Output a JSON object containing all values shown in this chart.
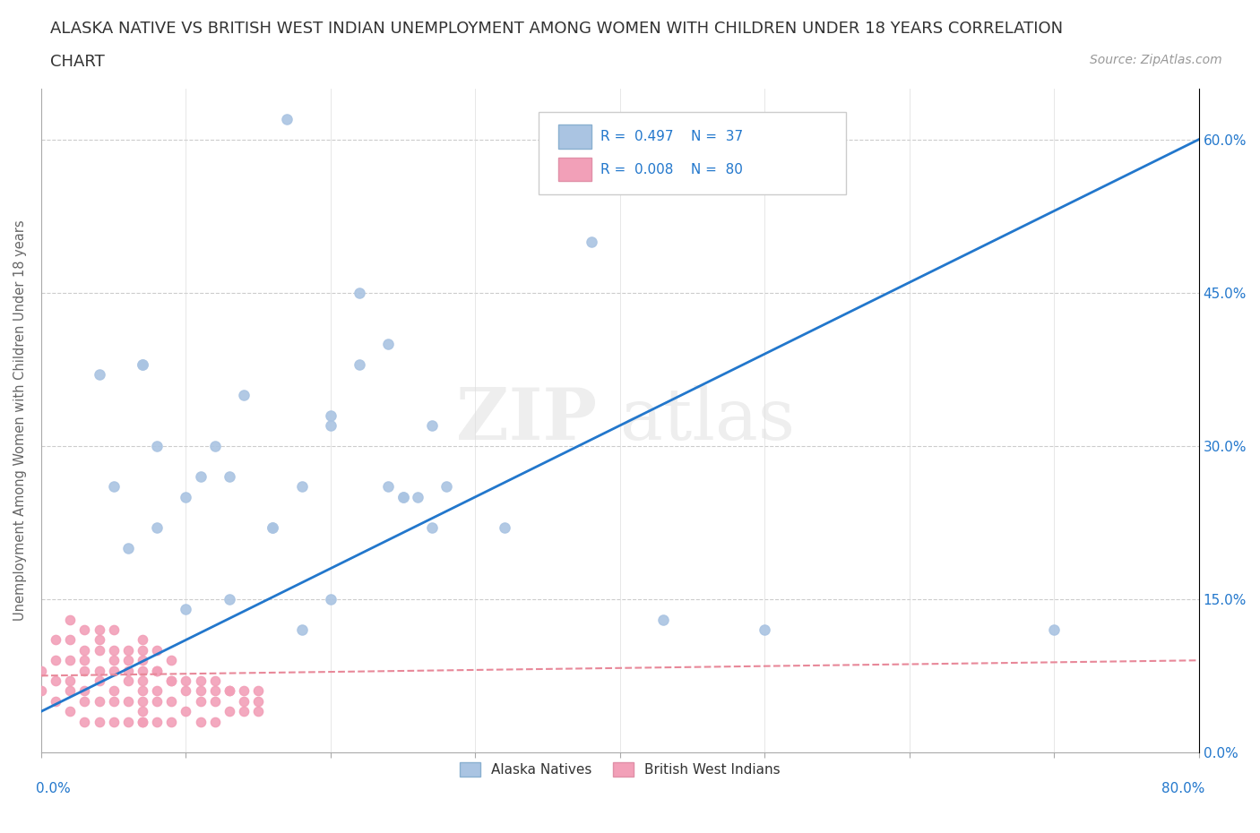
{
  "title_line1": "ALASKA NATIVE VS BRITISH WEST INDIAN UNEMPLOYMENT AMONG WOMEN WITH CHILDREN UNDER 18 YEARS CORRELATION",
  "title_line2": "CHART",
  "source_text": "Source: ZipAtlas.com",
  "ylabel": "Unemployment Among Women with Children Under 18 years",
  "watermark": "ZIPatlas",
  "alaska_color": "#aac4e2",
  "bwi_color": "#f2a0b8",
  "alaska_line_color": "#2277cc",
  "bwi_line_color": "#e88899",
  "alaska_scatter_x": [
    0.17,
    0.22,
    0.24,
    0.22,
    0.2,
    0.07,
    0.07,
    0.14,
    0.12,
    0.08,
    0.11,
    0.13,
    0.18,
    0.24,
    0.28,
    0.25,
    0.26,
    0.32,
    0.2,
    0.38,
    0.5,
    0.43,
    0.27,
    0.1,
    0.06,
    0.05,
    0.04,
    0.13,
    0.1,
    0.08,
    0.16,
    0.16,
    0.2,
    0.25,
    0.18,
    0.7,
    0.27
  ],
  "alaska_scatter_y": [
    0.62,
    0.45,
    0.4,
    0.38,
    0.33,
    0.38,
    0.38,
    0.35,
    0.3,
    0.3,
    0.27,
    0.27,
    0.26,
    0.26,
    0.26,
    0.25,
    0.25,
    0.22,
    0.32,
    0.5,
    0.12,
    0.13,
    0.22,
    0.25,
    0.2,
    0.26,
    0.37,
    0.15,
    0.14,
    0.22,
    0.22,
    0.22,
    0.15,
    0.25,
    0.12,
    0.12,
    0.32
  ],
  "bwi_scatter_x": [
    0.0,
    0.0,
    0.01,
    0.01,
    0.01,
    0.01,
    0.02,
    0.02,
    0.02,
    0.02,
    0.02,
    0.03,
    0.03,
    0.03,
    0.03,
    0.03,
    0.03,
    0.04,
    0.04,
    0.04,
    0.04,
    0.04,
    0.04,
    0.05,
    0.05,
    0.05,
    0.05,
    0.05,
    0.05,
    0.06,
    0.06,
    0.06,
    0.06,
    0.06,
    0.07,
    0.07,
    0.07,
    0.07,
    0.07,
    0.07,
    0.07,
    0.07,
    0.07,
    0.08,
    0.08,
    0.08,
    0.08,
    0.08,
    0.09,
    0.09,
    0.09,
    0.09,
    0.1,
    0.1,
    0.11,
    0.11,
    0.11,
    0.12,
    0.12,
    0.12,
    0.13,
    0.13,
    0.14,
    0.14,
    0.15,
    0.15,
    0.02,
    0.03,
    0.04,
    0.05,
    0.06,
    0.07,
    0.08,
    0.09,
    0.1,
    0.11,
    0.12,
    0.13,
    0.14,
    0.15
  ],
  "bwi_scatter_y": [
    0.06,
    0.08,
    0.05,
    0.07,
    0.09,
    0.11,
    0.04,
    0.06,
    0.07,
    0.09,
    0.11,
    0.03,
    0.05,
    0.06,
    0.08,
    0.1,
    0.12,
    0.03,
    0.05,
    0.07,
    0.08,
    0.1,
    0.12,
    0.03,
    0.05,
    0.06,
    0.08,
    0.1,
    0.12,
    0.03,
    0.05,
    0.07,
    0.08,
    0.1,
    0.03,
    0.04,
    0.06,
    0.07,
    0.09,
    0.1,
    0.11,
    0.03,
    0.05,
    0.03,
    0.05,
    0.06,
    0.08,
    0.1,
    0.03,
    0.05,
    0.07,
    0.09,
    0.04,
    0.06,
    0.03,
    0.05,
    0.07,
    0.03,
    0.05,
    0.07,
    0.04,
    0.06,
    0.04,
    0.06,
    0.04,
    0.06,
    0.13,
    0.09,
    0.11,
    0.09,
    0.09,
    0.08,
    0.08,
    0.07,
    0.07,
    0.06,
    0.06,
    0.06,
    0.05,
    0.05
  ],
  "alaska_line_x": [
    0.0,
    0.8
  ],
  "alaska_line_y": [
    0.04,
    0.6
  ],
  "bwi_line_x": [
    0.0,
    0.8
  ],
  "bwi_line_y": [
    0.075,
    0.09
  ],
  "xlim": [
    0.0,
    0.8
  ],
  "ylim": [
    0.0,
    0.65
  ],
  "x_ticks": [
    0.0,
    0.1,
    0.2,
    0.3,
    0.4,
    0.5,
    0.6,
    0.7,
    0.8
  ],
  "y_ticks": [
    0.0,
    0.15,
    0.3,
    0.45,
    0.6
  ],
  "y_tick_labels": [
    "0.0%",
    "15.0%",
    "30.0%",
    "45.0%",
    "60.0%"
  ],
  "title_fontsize": 13,
  "source_fontsize": 10
}
